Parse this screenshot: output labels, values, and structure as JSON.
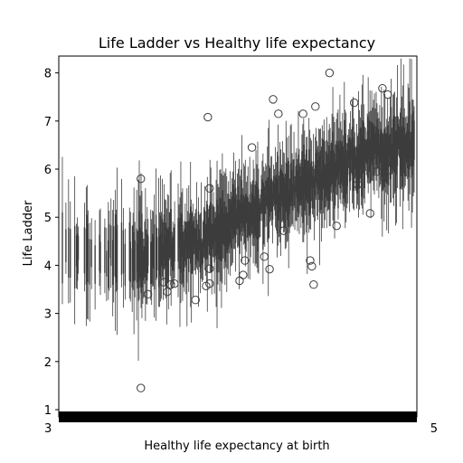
{
  "chart_data": {
    "type": "box",
    "title": "Life Ladder vs Healthy life expectancy",
    "xlabel": "Healthy life expectancy at birth",
    "ylabel": "Life Ladder",
    "ylim": [
      0.85,
      8.35
    ],
    "yticks": [
      1,
      2,
      3,
      4,
      5,
      6,
      7,
      8
    ],
    "xtick_first": "3",
    "xtick_last": "5",
    "grid": false,
    "legend": "none",
    "box_count": 400,
    "trend": [
      {
        "pos": 0.0,
        "median": 4.3
      },
      {
        "pos": 0.2,
        "median": 4.2
      },
      {
        "pos": 0.4,
        "median": 4.5
      },
      {
        "pos": 0.5,
        "median": 5.0
      },
      {
        "pos": 0.6,
        "median": 5.4
      },
      {
        "pos": 0.75,
        "median": 5.9
      },
      {
        "pos": 0.9,
        "median": 6.4
      },
      {
        "pos": 1.0,
        "median": 6.4
      }
    ],
    "outliers": [
      {
        "pos": 0.225,
        "y": 5.8
      },
      {
        "pos": 0.225,
        "y": 1.45
      },
      {
        "pos": 0.245,
        "y": 3.4
      },
      {
        "pos": 0.29,
        "y": 3.65
      },
      {
        "pos": 0.3,
        "y": 3.45
      },
      {
        "pos": 0.31,
        "y": 3.6
      },
      {
        "pos": 0.32,
        "y": 3.62
      },
      {
        "pos": 0.38,
        "y": 3.28
      },
      {
        "pos": 0.41,
        "y": 3.57
      },
      {
        "pos": 0.42,
        "y": 3.62
      },
      {
        "pos": 0.42,
        "y": 3.93
      },
      {
        "pos": 0.42,
        "y": 5.6
      },
      {
        "pos": 0.415,
        "y": 7.08
      },
      {
        "pos": 0.505,
        "y": 3.68
      },
      {
        "pos": 0.515,
        "y": 3.8
      },
      {
        "pos": 0.52,
        "y": 4.1
      },
      {
        "pos": 0.54,
        "y": 6.45
      },
      {
        "pos": 0.575,
        "y": 4.18
      },
      {
        "pos": 0.59,
        "y": 3.92
      },
      {
        "pos": 0.6,
        "y": 7.45
      },
      {
        "pos": 0.615,
        "y": 7.15
      },
      {
        "pos": 0.63,
        "y": 4.72
      },
      {
        "pos": 0.685,
        "y": 7.15
      },
      {
        "pos": 0.705,
        "y": 4.1
      },
      {
        "pos": 0.71,
        "y": 3.98
      },
      {
        "pos": 0.715,
        "y": 3.6
      },
      {
        "pos": 0.72,
        "y": 7.3
      },
      {
        "pos": 0.76,
        "y": 8.0
      },
      {
        "pos": 0.78,
        "y": 4.82
      },
      {
        "pos": 0.83,
        "y": 7.38
      },
      {
        "pos": 0.84,
        "y": 5.68
      },
      {
        "pos": 0.875,
        "y": 5.08
      },
      {
        "pos": 0.895,
        "y": 5.95
      },
      {
        "pos": 0.91,
        "y": 7.68
      },
      {
        "pos": 0.915,
        "y": 5.82
      },
      {
        "pos": 0.915,
        "y": 6.05
      },
      {
        "pos": 0.925,
        "y": 7.55
      },
      {
        "pos": 0.93,
        "y": 5.98
      }
    ]
  }
}
